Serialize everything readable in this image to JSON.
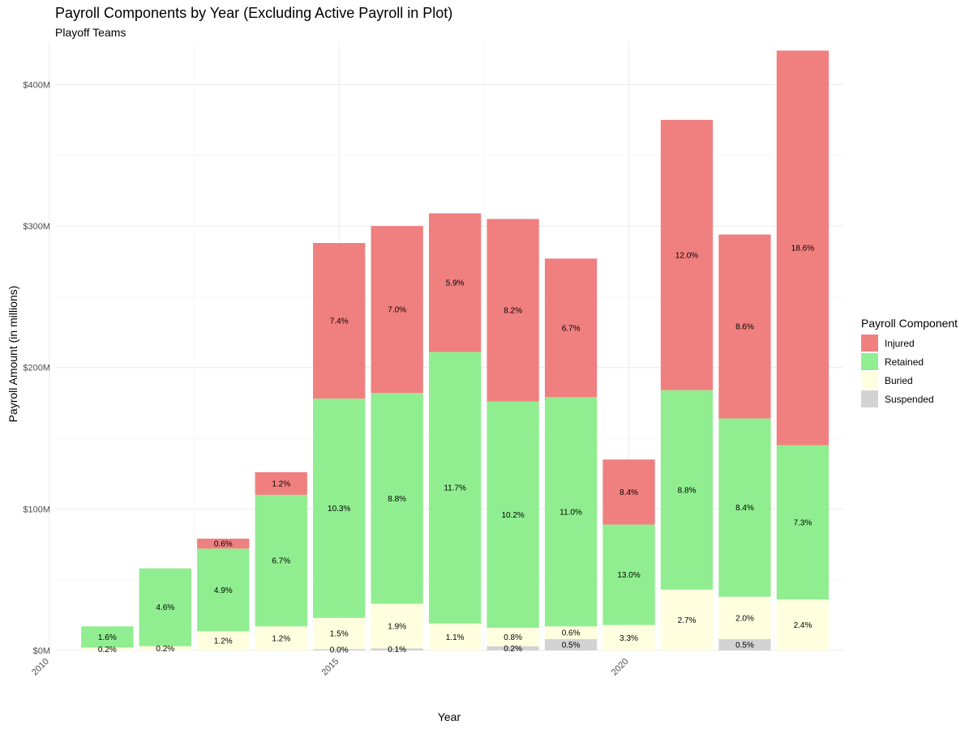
{
  "chart_data": {
    "type": "bar",
    "stacked": true,
    "title": "Payroll Components by Year (Excluding Active Payroll in Plot)",
    "subtitle": "Playoff Teams",
    "xlabel": "Year",
    "ylabel": "Payroll Amount (in millions)",
    "x": [
      2011,
      2012,
      2013,
      2014,
      2015,
      2016,
      2017,
      2018,
      2019,
      2020,
      2021,
      2022,
      2023
    ],
    "x_ticks": [
      "2010",
      "2015",
      "2020"
    ],
    "x_tick_values": [
      2010,
      2015,
      2020
    ],
    "y_ticks": [
      "$0M",
      "$100M",
      "$200M",
      "$300M",
      "$400M"
    ],
    "y_tick_values": [
      0,
      100,
      200,
      300,
      400
    ],
    "xlim": [
      2010.1,
      2023.7
    ],
    "ylim": [
      0,
      430
    ],
    "grid": true,
    "legend_title": "Payroll Component",
    "legend_position": "right",
    "series": [
      {
        "name": "Suspended",
        "color": "#d3d3d3",
        "values": [
          0,
          0,
          0,
          0,
          1,
          1.5,
          0,
          3,
          8,
          0,
          0,
          8,
          0
        ],
        "labels": [
          "",
          "",
          "",
          "",
          "0.0%",
          "0.1%",
          "",
          "0.2%",
          "0.5%",
          "",
          "",
          "0.5%",
          ""
        ]
      },
      {
        "name": "Buried",
        "color": "#ffffe0",
        "values": [
          2,
          3,
          13.5,
          17,
          22,
          31.5,
          19,
          13,
          9,
          18,
          43,
          30,
          36
        ],
        "labels": [
          "0.2%",
          "0.2%",
          "1.2%",
          "1.2%",
          "1.5%",
          "1.9%",
          "1.1%",
          "0.8%",
          "0.6%",
          "3.3%",
          "2.7%",
          "2.0%",
          "2.4%"
        ]
      },
      {
        "name": "Retained",
        "color": "#90ee90",
        "values": [
          15,
          55,
          58.5,
          93,
          155,
          149,
          192,
          160,
          162,
          71,
          141,
          126,
          109
        ],
        "labels": [
          "1.6%",
          "4.6%",
          "4.9%",
          "6.7%",
          "10.3%",
          "8.8%",
          "11.7%",
          "10.2%",
          "11.0%",
          "13.0%",
          "8.8%",
          "8.4%",
          "7.3%"
        ]
      },
      {
        "name": "Injured",
        "color": "#f08080",
        "values": [
          0,
          0,
          7,
          16,
          110,
          118,
          98,
          129,
          98,
          46,
          191,
          130,
          279
        ],
        "labels": [
          "",
          "",
          "0.6%",
          "1.2%",
          "7.4%",
          "7.0%",
          "5.9%",
          "8.2%",
          "6.7%",
          "8.4%",
          "12.0%",
          "8.6%",
          "18.6%"
        ]
      }
    ],
    "legend_order": [
      "Injured",
      "Retained",
      "Buried",
      "Suspended"
    ]
  }
}
